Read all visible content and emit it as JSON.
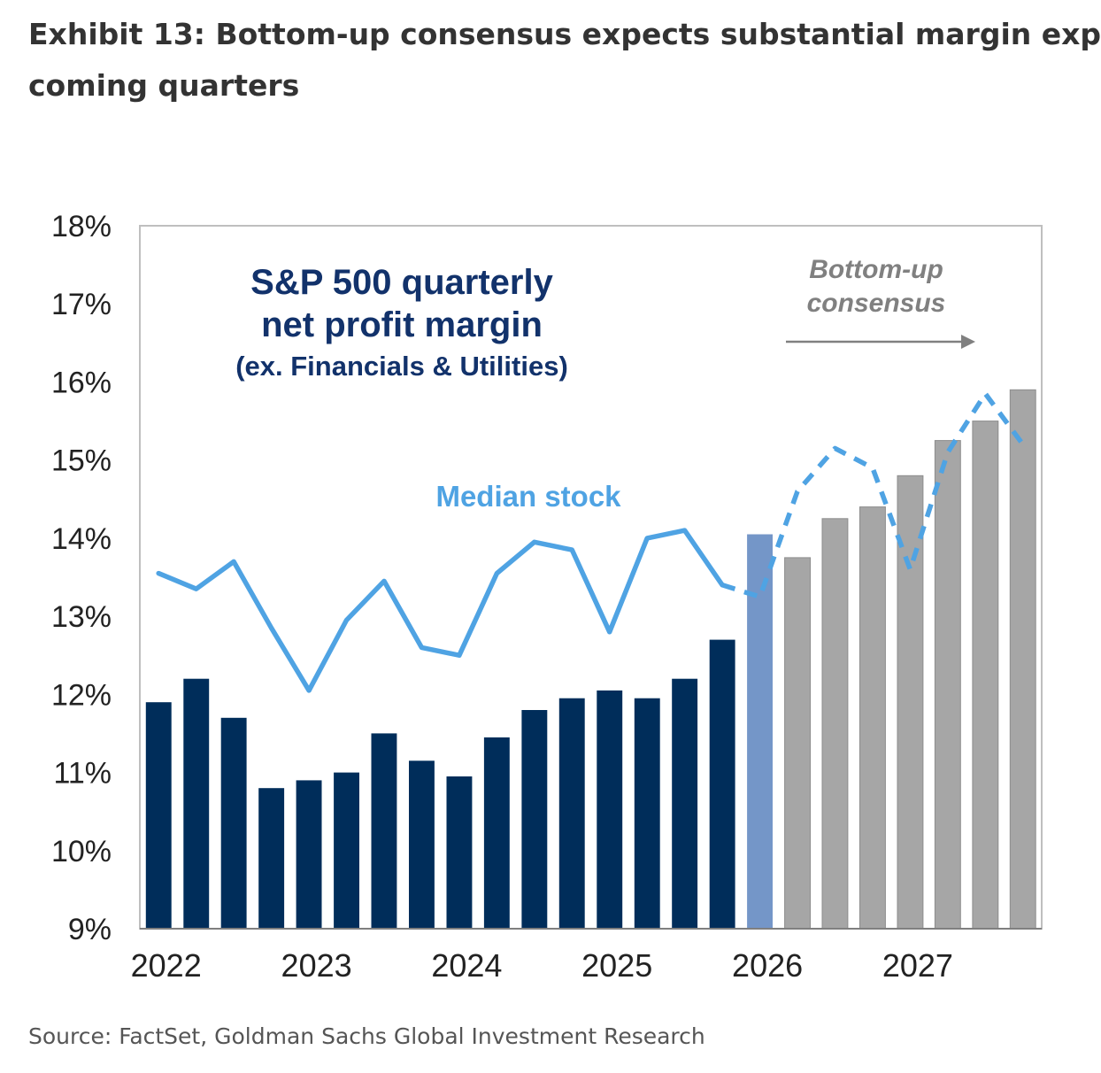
{
  "exhibit": {
    "title_line1": "Exhibit 13: Bottom-up consensus expects substantial margin exp",
    "title_line2": "coming quarters",
    "source": "Source: FactSet, Goldman Sachs Global Investment Research"
  },
  "chart_data": {
    "type": "bar",
    "title_lines": [
      "S&P 500 quarterly",
      "net profit margin",
      "(ex. Financials & Utilities)"
    ],
    "annotation_lines": [
      "Bottom-up",
      "consensus"
    ],
    "line_label": "Median stock",
    "y_ticks": [
      "18%",
      "17%",
      "16%",
      "15%",
      "14%",
      "13%",
      "12%",
      "11%",
      "10%",
      "9%"
    ],
    "x_ticks": [
      "2022",
      "2023",
      "2024",
      "2025",
      "2026",
      "2027"
    ],
    "ylim": [
      9,
      18
    ],
    "grid": false,
    "colors": {
      "actual": "#002D5A",
      "current": "#7496C8",
      "estimate": "#A6A6A6",
      "estimate_edge": "#8C8C8C",
      "line": "#4FA3E3",
      "title_text": "#12326B",
      "annotation_text": "#808080"
    },
    "bars": {
      "name": "S&P 500 quarterly net profit margin",
      "values": [
        11.9,
        12.2,
        11.7,
        10.8,
        10.9,
        11.0,
        11.5,
        11.15,
        10.95,
        11.45,
        11.8,
        11.95,
        12.05,
        11.95,
        12.2,
        12.7,
        14.05,
        13.75,
        14.25,
        14.4,
        14.8,
        15.25,
        15.5,
        15.9
      ],
      "status": [
        "actual",
        "actual",
        "actual",
        "actual",
        "actual",
        "actual",
        "actual",
        "actual",
        "actual",
        "actual",
        "actual",
        "actual",
        "actual",
        "actual",
        "actual",
        "actual",
        "current",
        "estimate",
        "estimate",
        "estimate",
        "estimate",
        "estimate",
        "estimate",
        "estimate"
      ]
    },
    "median_line": {
      "name": "Median stock",
      "values": [
        13.55,
        13.35,
        13.7,
        12.85,
        12.05,
        12.95,
        13.45,
        12.6,
        12.5,
        13.55,
        13.95,
        13.85,
        12.8,
        14.0,
        14.1,
        13.4,
        13.25,
        14.6,
        15.15,
        14.9,
        13.6,
        15.1,
        15.85,
        15.2
      ],
      "projected_from_index": 16
    }
  }
}
